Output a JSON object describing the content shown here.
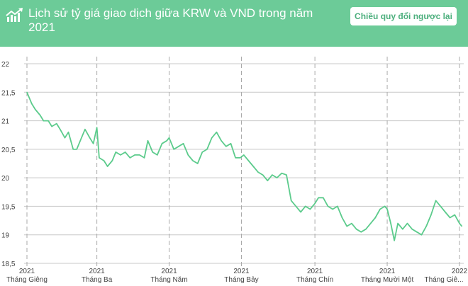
{
  "header": {
    "title": "Lịch sử tỷ giá giao dịch giữa KRW và VND trong năm 2021",
    "icon": "chart-trend-up-icon",
    "reverse_button": "Chiều quy đổi ngược lại",
    "background_color": "#6ccb98"
  },
  "chart_data": {
    "type": "line",
    "title": "",
    "xlabel": "",
    "ylabel": "",
    "ylim": [
      18.5,
      22
    ],
    "yticks": [
      "22",
      "21,5",
      "21",
      "20,5",
      "20",
      "19,5",
      "19",
      "18,5"
    ],
    "ytick_values": [
      22,
      21.5,
      21,
      20.5,
      20,
      19.5,
      19,
      18.5
    ],
    "xticks": [
      {
        "date": "2021-01-01",
        "year": "2021",
        "label": "Tháng Giêng"
      },
      {
        "date": "2021-03-01",
        "year": "2021",
        "label": "Tháng Ba"
      },
      {
        "date": "2021-05-01",
        "year": "2021",
        "label": "Tháng Năm"
      },
      {
        "date": "2021-07-01",
        "year": "2021",
        "label": "Tháng Bảy"
      },
      {
        "date": "2021-09-01",
        "year": "2021",
        "label": "Tháng Chín"
      },
      {
        "date": "2021-11-01",
        "year": "2021",
        "label": "Tháng Mười Một"
      },
      {
        "date": "2022-01-01",
        "year": "2022",
        "label": "Tháng Giê..."
      }
    ],
    "xlim": [
      "2021-01-01",
      "2022-01-05"
    ],
    "grid": true,
    "line_color": "#5ccb8c",
    "series": [
      {
        "x": [
          "2021-01-01",
          "2021-01-05",
          "2021-01-08",
          "2021-01-12",
          "2021-01-15",
          "2021-01-19",
          "2021-01-22",
          "2021-01-26",
          "2021-01-29",
          "2021-02-02",
          "2021-02-05",
          "2021-02-09",
          "2021-02-12",
          "2021-02-16",
          "2021-02-19",
          "2021-02-23",
          "2021-02-26",
          "2021-03-01",
          "2021-03-03",
          "2021-03-07",
          "2021-03-10",
          "2021-03-14",
          "2021-03-17",
          "2021-03-21",
          "2021-03-25",
          "2021-03-29",
          "2021-04-02",
          "2021-04-06",
          "2021-04-10",
          "2021-04-13",
          "2021-04-17",
          "2021-04-21",
          "2021-04-25",
          "2021-04-29",
          "2021-05-01",
          "2021-05-05",
          "2021-05-09",
          "2021-05-13",
          "2021-05-17",
          "2021-05-21",
          "2021-05-25",
          "2021-05-29",
          "2021-06-02",
          "2021-06-06",
          "2021-06-10",
          "2021-06-14",
          "2021-06-18",
          "2021-06-22",
          "2021-06-26",
          "2021-06-30",
          "2021-07-03",
          "2021-07-07",
          "2021-07-11",
          "2021-07-15",
          "2021-07-19",
          "2021-07-23",
          "2021-07-27",
          "2021-07-31",
          "2021-08-04",
          "2021-08-08",
          "2021-08-12",
          "2021-08-16",
          "2021-08-20",
          "2021-08-24",
          "2021-08-28",
          "2021-09-01",
          "2021-09-04",
          "2021-09-08",
          "2021-09-12",
          "2021-09-16",
          "2021-09-20",
          "2021-09-24",
          "2021-09-28",
          "2021-10-02",
          "2021-10-06",
          "2021-10-10",
          "2021-10-14",
          "2021-10-18",
          "2021-10-22",
          "2021-10-26",
          "2021-10-30",
          "2021-11-01",
          "2021-11-04",
          "2021-11-07",
          "2021-11-10",
          "2021-11-14",
          "2021-11-18",
          "2021-11-22",
          "2021-11-26",
          "2021-11-30",
          "2021-12-04",
          "2021-12-08",
          "2021-12-12",
          "2021-12-16",
          "2021-12-20",
          "2021-12-24",
          "2021-12-28",
          "2022-01-01",
          "2022-01-03"
        ],
        "y": [
          21.5,
          21.3,
          21.2,
          21.1,
          21.0,
          21.0,
          20.9,
          20.95,
          20.85,
          20.7,
          20.8,
          20.5,
          20.5,
          20.7,
          20.85,
          20.7,
          20.6,
          20.88,
          20.35,
          20.3,
          20.2,
          20.3,
          20.45,
          20.4,
          20.45,
          20.35,
          20.4,
          20.4,
          20.35,
          20.65,
          20.45,
          20.4,
          20.6,
          20.65,
          20.7,
          20.5,
          20.55,
          20.6,
          20.4,
          20.3,
          20.25,
          20.45,
          20.5,
          20.7,
          20.8,
          20.65,
          20.55,
          20.6,
          20.35,
          20.35,
          20.4,
          20.3,
          20.2,
          20.1,
          20.05,
          19.95,
          20.05,
          20.0,
          20.08,
          20.05,
          19.6,
          19.5,
          19.4,
          19.5,
          19.45,
          19.55,
          19.65,
          19.65,
          19.5,
          19.45,
          19.5,
          19.3,
          19.15,
          19.2,
          19.1,
          19.05,
          19.1,
          19.2,
          19.3,
          19.45,
          19.5,
          19.45,
          19.2,
          18.9,
          19.2,
          19.1,
          19.2,
          19.1,
          19.05,
          19.0,
          19.15,
          19.35,
          19.6,
          19.5,
          19.4,
          19.3,
          19.35,
          19.2,
          19.15
        ]
      }
    ]
  }
}
